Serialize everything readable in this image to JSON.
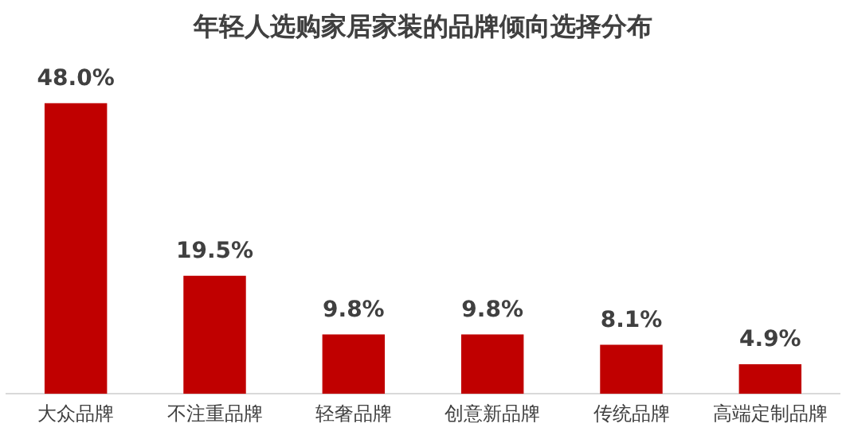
{
  "chart_data": {
    "type": "bar",
    "title": "年轻人选购家居家装的品牌倾向选择分布",
    "categories": [
      "大众品牌",
      "不注重品牌",
      "轻奢品牌",
      "创意新品牌",
      "传统品牌",
      "高端定制品牌"
    ],
    "values": [
      48.0,
      19.5,
      9.8,
      9.8,
      8.1,
      4.9
    ],
    "value_labels": [
      "48.0%",
      "19.5%",
      "9.8%",
      "9.8%",
      "8.1%",
      "4.9%"
    ],
    "color": "#c00000",
    "grid": false,
    "legend": false
  }
}
